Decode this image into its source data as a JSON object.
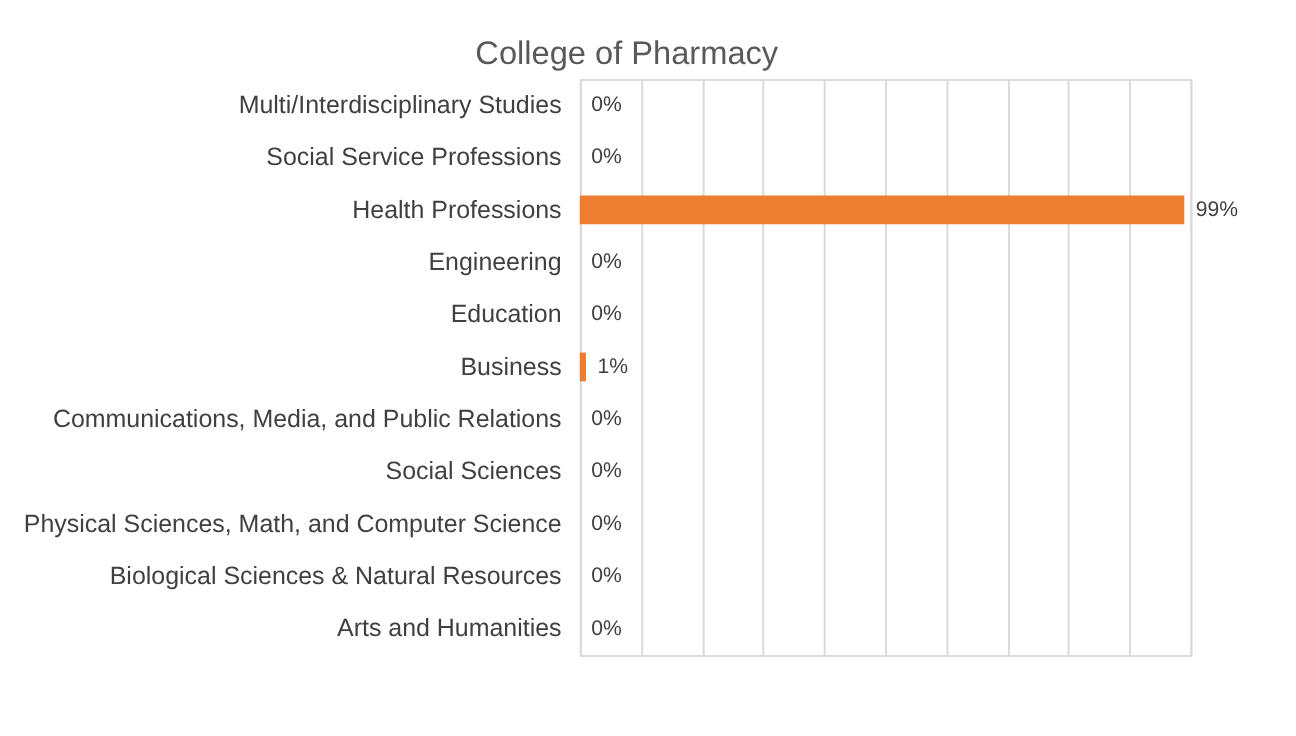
{
  "chart_data": {
    "type": "bar",
    "orientation": "horizontal",
    "title": "College of Pharmacy",
    "categories": [
      "Multi/Interdisciplinary Studies",
      "Social Service Professions",
      "Health Professions",
      "Engineering",
      "Education",
      "Business",
      "Communications, Media, and Public Relations",
      "Social Sciences",
      "Physical Sciences, Math, and  Computer Science",
      "Biological Sciences & Natural Resources",
      "Arts and Humanities"
    ],
    "values": [
      0,
      0,
      99,
      0,
      0,
      1,
      0,
      0,
      0,
      0,
      0
    ],
    "value_labels": [
      "0%",
      "0%",
      "99%",
      "0%",
      "0%",
      "1%",
      "0%",
      "0%",
      "0%",
      "0%",
      "0%"
    ],
    "color": "#ed7d31",
    "xlim": [
      0,
      100
    ],
    "xticks": [
      {
        "value": 0,
        "label": null
      },
      {
        "value": 10,
        "label": null
      },
      {
        "value": 20,
        "label": null
      },
      {
        "value": 30,
        "label": null
      },
      {
        "value": 40,
        "label": null
      },
      {
        "value": 50,
        "label": null
      },
      {
        "value": 60,
        "label": null
      },
      {
        "value": 70,
        "label": null
      },
      {
        "value": 80,
        "label": null
      },
      {
        "value": 90,
        "label": null
      },
      {
        "value": 100,
        "label": null
      }
    ],
    "grid": "x",
    "tick_labels": "y"
  }
}
